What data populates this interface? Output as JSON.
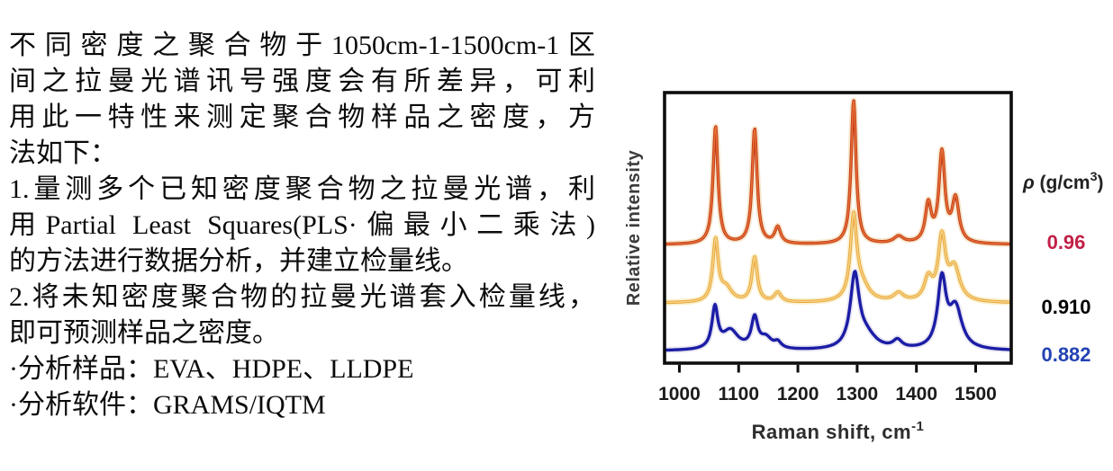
{
  "text_block": {
    "lines": [
      "不同密度之聚合物于1050cm-1-1500cm-1区",
      "间之拉曼光谱讯号强度会有所差异，可利",
      "用此一特性来测定聚合物样品之密度，方",
      "法如下：",
      "1.量测多个已知密度聚合物之拉曼光谱，利",
      "用Partial Least Squares(PLS·偏最小二乘法)",
      "的方法进行数据分析，并建立检量线。",
      "2.将未知密度聚合物的拉曼光谱套入检量线，",
      "即可预测样品之密度。",
      "·分析样品：EVA、HDPE、LLDPE",
      "·分析软件：GRAMS/IQTM"
    ]
  },
  "chart_data": {
    "type": "line",
    "title": "",
    "xlabel": "Raman shift, cm⁻¹",
    "ylabel": "Relative intensity",
    "x_range": [
      975,
      1560
    ],
    "x_ticks": [
      1000,
      1100,
      1200,
      1300,
      1400,
      1500
    ],
    "y_ticks": [],
    "grid": false,
    "legend_title": "ρ (g/cm³)",
    "legend_position": "right-outside",
    "peak_encoding": "[center cm-1, height as % of plot height, HWHM cm-1]; three vertically offset Raman spectra",
    "series": [
      {
        "label": "0.96",
        "label_color": "#c22047",
        "curve_color": "#c43c1d",
        "halo_color": "#f5e2c2",
        "core_color": "#ea7433",
        "baseline_offset": 43.8,
        "peaks": [
          [
            1061,
            43.5,
            5
          ],
          [
            1127,
            42.5,
            5
          ],
          [
            1166,
            6,
            6
          ],
          [
            1294,
            53,
            5
          ],
          [
            1370,
            2.6,
            10
          ],
          [
            1420,
            14,
            6
          ],
          [
            1443,
            33,
            6
          ],
          [
            1466,
            16,
            7
          ]
        ]
      },
      {
        "label": "0.910",
        "label_color": "#edа93e",
        "curve_color": "#e8a63b",
        "halo_color": "#f9eec8",
        "core_color": "#f8d68c",
        "baseline_offset": 22.2,
        "peaks": [
          [
            1061,
            22.5,
            5.5
          ],
          [
            1079,
            5,
            12
          ],
          [
            1127,
            16.5,
            5.5
          ],
          [
            1166,
            3.5,
            7
          ],
          [
            1294,
            30.5,
            6.5
          ],
          [
            1308,
            5.5,
            15
          ],
          [
            1370,
            3,
            10
          ],
          [
            1420,
            8,
            8
          ],
          [
            1443,
            23,
            7.5
          ],
          [
            1464,
            12,
            11
          ]
        ]
      },
      {
        "label": "0.882",
        "label_color": "#2342b2",
        "curve_color": "#1b1da6",
        "halo_color": "#e6e3f0",
        "core_color": "",
        "baseline_offset": 4.5,
        "peaks": [
          [
            1060,
            15,
            6
          ],
          [
            1086,
            7,
            16
          ],
          [
            1127,
            11,
            6.5
          ],
          [
            1146,
            4,
            12
          ],
          [
            1166,
            2.2,
            7
          ],
          [
            1296,
            26.5,
            9
          ],
          [
            1315,
            5,
            20
          ],
          [
            1368,
            3,
            9
          ],
          [
            1443,
            25,
            8.5
          ],
          [
            1466,
            15,
            13
          ]
        ]
      }
    ],
    "draw_order": [
      1,
      2,
      0
    ]
  }
}
